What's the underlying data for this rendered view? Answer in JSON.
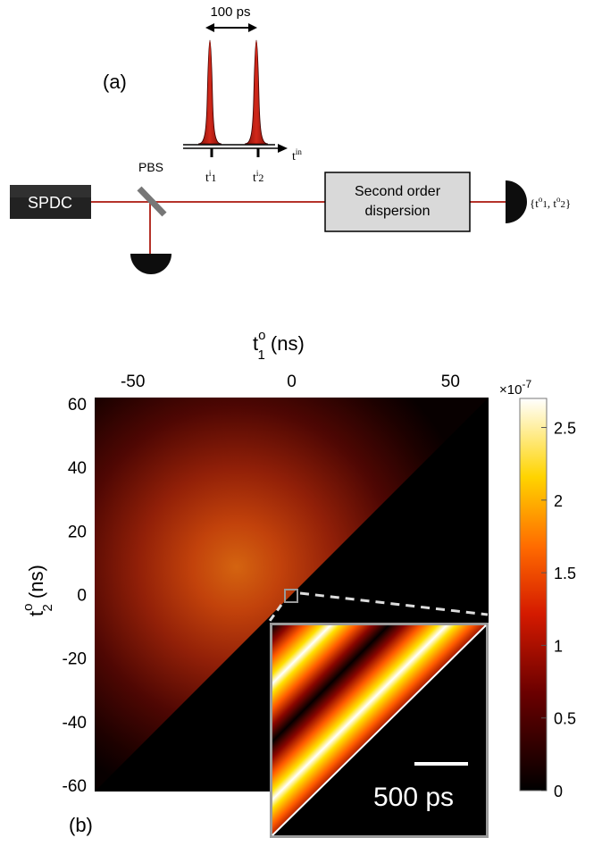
{
  "panel_a": {
    "label": "(a)",
    "pulse_separation_label": "100 ps",
    "t_in_label": {
      "base": "t",
      "sup": "in"
    },
    "t_i1_label": {
      "base": "t",
      "sup": "i",
      "sub": "1"
    },
    "t_i2_label": {
      "base": "t",
      "sup": "i",
      "sub": "2"
    },
    "source_label": "SPDC",
    "pbs_label": "PBS",
    "dispersion_line1": "Second order",
    "dispersion_line2": "dispersion",
    "output_label": {
      "open": "{t",
      "sup1": "o",
      "sub1": "1",
      "mid": ", t",
      "sup2": "o",
      "sub2": "2",
      "close": "}"
    },
    "colors": {
      "pulse_fill": "#b51b0f",
      "beam": "#b5332a",
      "source_bg": "#222222",
      "box_fill": "#d9d9d9",
      "detector": "#0d0d0d"
    }
  },
  "panel_b": {
    "label": "(b)",
    "top_axis_label": {
      "base": "t",
      "sup": "o",
      "sub": "1",
      "unit": " (ns)"
    },
    "left_axis_label": {
      "base": "t",
      "sup": "o",
      "sub": "2",
      "unit": " (ns)"
    },
    "x_ticks": [
      "-50",
      "0",
      "50"
    ],
    "y_ticks": [
      "60",
      "40",
      "20",
      "0",
      "-20",
      "-40",
      "-60"
    ],
    "colorbar_exponent": "×10",
    "colorbar_exponent_power": "-7",
    "colorbar_ticks": [
      "2.5",
      "2",
      "1.5",
      "1",
      "0.5",
      "0"
    ],
    "inset_scalebar_label": "500 ps",
    "colors": {
      "colormap": [
        "#000000",
        "#4d0000",
        "#b31a00",
        "#ff6600",
        "#ffd000",
        "#ffffff"
      ]
    }
  },
  "chart_data": {
    "type": "heatmap",
    "title": "",
    "xlabel": "t^o_1 (ns)",
    "ylabel": "t^o_2 (ns)",
    "xlim": [
      -62,
      62
    ],
    "ylim": [
      -62,
      62
    ],
    "x_ticks": [
      -50,
      0,
      50
    ],
    "y_ticks": [
      -60,
      -40,
      -20,
      0,
      20,
      40,
      60
    ],
    "colorbar": {
      "min": 0,
      "max": 2.7e-07,
      "ticks": [
        0,
        0.5,
        1,
        1.5,
        2,
        2.5
      ],
      "scale_factor": "1e-7",
      "colormap": "hot"
    },
    "description_of_distribution": {
      "nonzero_region": "t^o_2 > t^o_1",
      "peak_center": [
        -10,
        10
      ],
      "peak_value": 1.6e-07
    },
    "inset": {
      "zoom_center": [
        0,
        0
      ],
      "fringe_count": 4,
      "scale_bar": "500 ps"
    }
  }
}
